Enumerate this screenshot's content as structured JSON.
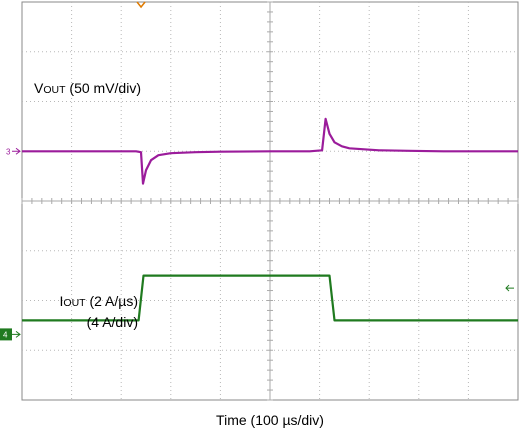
{
  "chart_data": {
    "type": "line",
    "xlabel": "Time (100 µs/div)",
    "x_unit": "µs",
    "x_per_div": 100,
    "divisions": {
      "x": 10,
      "y": 8
    },
    "xlim": [
      0,
      1000
    ],
    "grid": true,
    "series": [
      {
        "name_parts": [
          "V",
          "OUT",
          " (50 mV/div)"
        ],
        "channel": "3",
        "color": "#9b1c9b",
        "unit": "div",
        "x": [
          0,
          230,
          240,
          244,
          250,
          260,
          275,
          300,
          350,
          400,
          500,
          550,
          580,
          605,
          612,
          620,
          630,
          645,
          660,
          690,
          720,
          780,
          850,
          1000
        ],
        "y": [
          5.0,
          5.0,
          4.98,
          4.35,
          4.62,
          4.82,
          4.92,
          4.96,
          4.98,
          4.99,
          5.0,
          5.0,
          5.0,
          5.02,
          5.65,
          5.35,
          5.18,
          5.1,
          5.06,
          5.04,
          5.02,
          5.01,
          5.0,
          5.0
        ]
      },
      {
        "name_parts": [
          "I",
          "OUT",
          " (2 A/µs)"
        ],
        "name_line2": "(4 A/div)",
        "channel": "4",
        "color": "#1f7a1f",
        "unit": "div",
        "x": [
          0,
          235,
          245,
          620,
          630,
          1000
        ],
        "y": [
          1.6,
          1.6,
          2.5,
          2.5,
          1.6,
          1.6
        ]
      }
    ],
    "trigger_marker_x": 240,
    "right_arrow_level": 2.25
  }
}
